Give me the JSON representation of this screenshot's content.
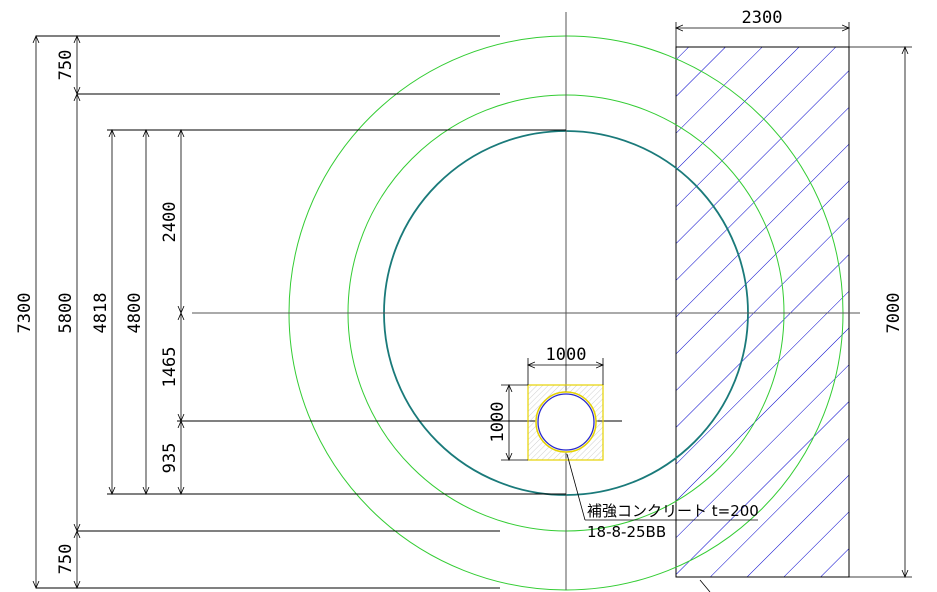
{
  "dimensions": {
    "overall_height": "7300",
    "top_clearance": "750",
    "bottom_clearance": "750",
    "inner_height": "5800",
    "outer_shaft": "4818",
    "shaft_diameter": "4800",
    "upper_radius": "2400",
    "middle_offset": "1465",
    "lower_offset": "935",
    "wall_width": "2300",
    "wall_height": "7000",
    "box_width": "1000",
    "box_height": "1000"
  },
  "note": {
    "line1": "補強コンクリート t=200",
    "line2": "18-8-25BB"
  },
  "colors": {
    "shaft_circle": "#1a7a7a",
    "outer_rings": "#33cc33",
    "hatch": "#0000cc",
    "box_outline": "#e6d200",
    "small_circle": "#2a2acc",
    "lines": "#000000"
  }
}
